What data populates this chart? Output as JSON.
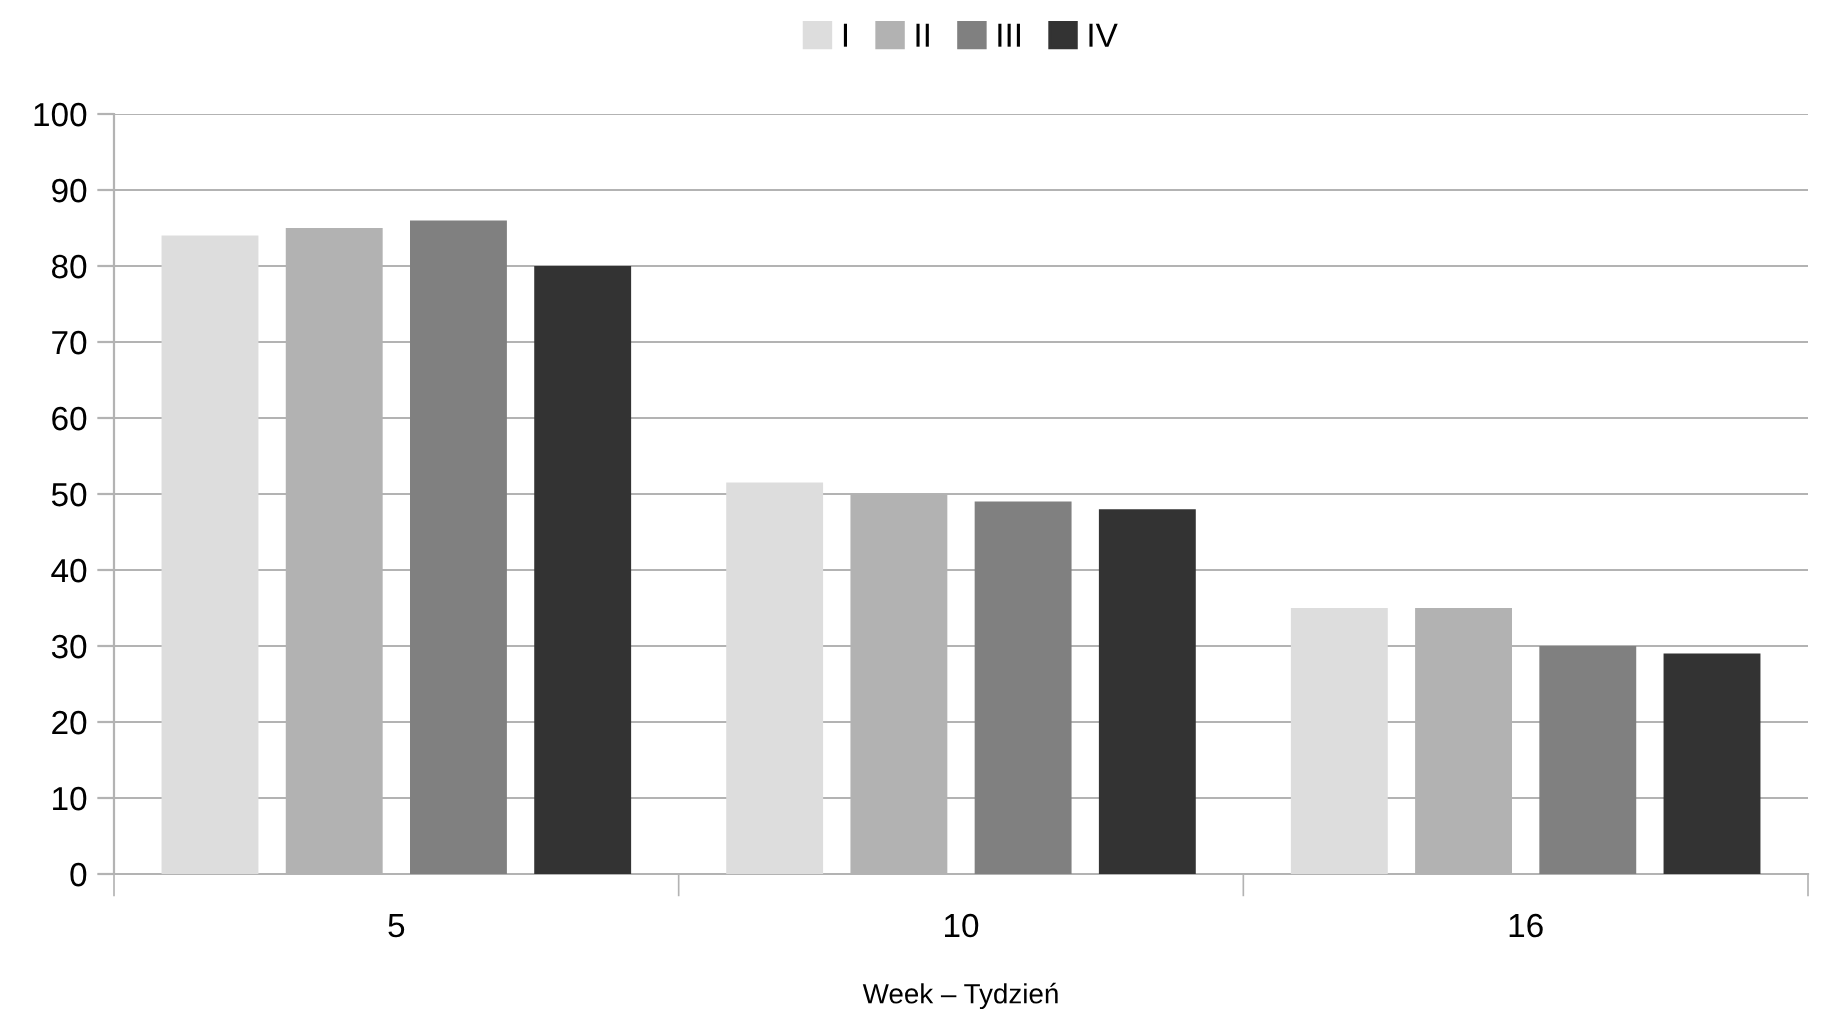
{
  "chart_data": {
    "type": "bar",
    "xlabel": "Week – Tydzień",
    "categories": [
      "5",
      "10",
      "16"
    ],
    "series": [
      {
        "name": "I",
        "color": "#dddddd",
        "values": [
          84,
          51.5,
          35
        ]
      },
      {
        "name": "II",
        "color": "#b2b2b2",
        "values": [
          85,
          50,
          35
        ]
      },
      {
        "name": "III",
        "color": "#808080",
        "values": [
          86,
          49,
          30
        ]
      },
      {
        "name": "IV",
        "color": "#333333",
        "values": [
          80,
          48,
          29
        ]
      }
    ],
    "ylim": [
      0,
      100
    ],
    "yticks": [
      0,
      10,
      20,
      30,
      40,
      50,
      60,
      70,
      80,
      90,
      100
    ],
    "grid": "y",
    "legend": "top"
  }
}
